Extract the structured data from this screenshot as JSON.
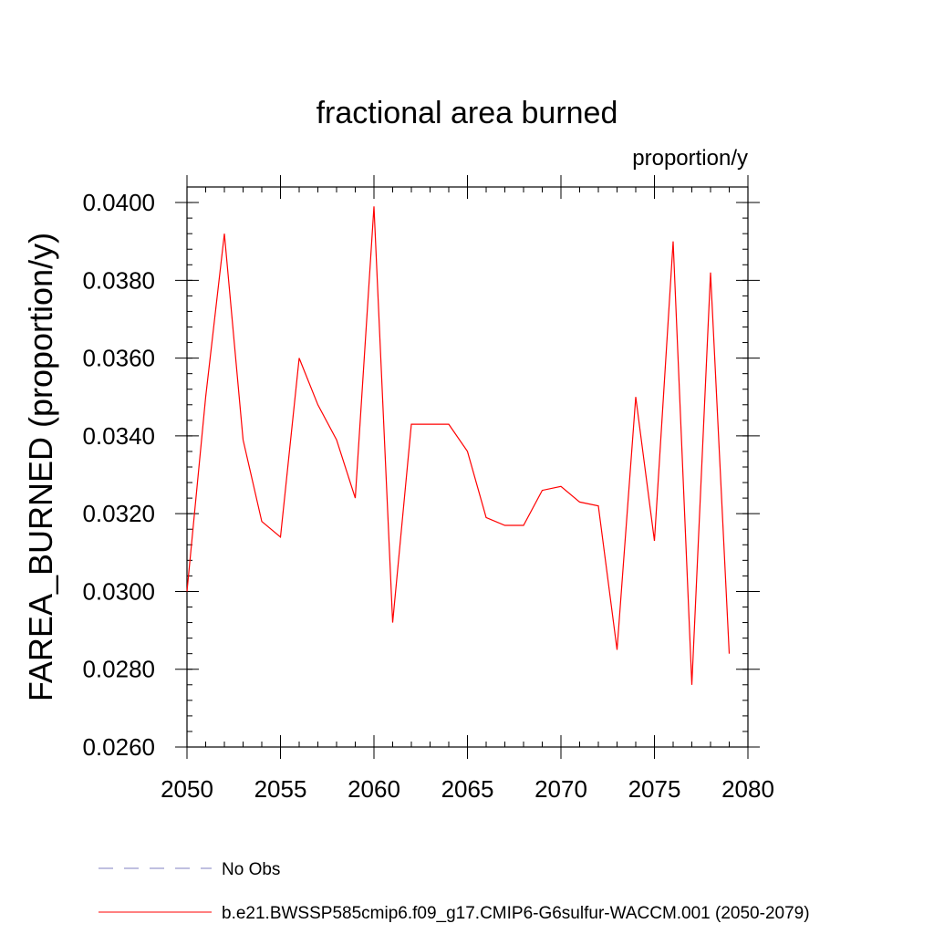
{
  "chart_data": {
    "type": "line",
    "title": "fractional area burned",
    "units": "proportion/y",
    "xlabel": "",
    "ylabel": "FAREA_BURNED  (proportion/y)",
    "xlim": [
      2050,
      2080
    ],
    "ylim": [
      0.026,
      0.0404
    ],
    "x_ticks": [
      2050,
      2055,
      2060,
      2065,
      2070,
      2075,
      2080
    ],
    "x_tick_labels": [
      "2050",
      "2055",
      "2060",
      "2065",
      "2070",
      "2075",
      "2080"
    ],
    "x_minor_step": 1,
    "y_ticks": [
      0.026,
      0.028,
      0.03,
      0.032,
      0.034,
      0.036,
      0.038,
      0.04
    ],
    "y_tick_labels": [
      "0.0260",
      "0.0280",
      "0.0300",
      "0.0320",
      "0.0340",
      "0.0360",
      "0.0380",
      "0.0400"
    ],
    "y_minor_step": 0.0004,
    "grid": false,
    "legend_position": "bottom",
    "series": [
      {
        "name": "b.e21.BWSSP585cmip6.f09_g17.CMIP6-G6sulfur-WACCM.001 (2050-2079)",
        "color": "#ff0000",
        "dash": "solid",
        "x": [
          2050,
          2051,
          2052,
          2053,
          2054,
          2055,
          2056,
          2057,
          2058,
          2059,
          2060,
          2061,
          2062,
          2063,
          2064,
          2065,
          2066,
          2067,
          2068,
          2069,
          2070,
          2071,
          2072,
          2073,
          2074,
          2075,
          2076,
          2077,
          2078,
          2079
        ],
        "values": [
          0.03,
          0.035,
          0.0392,
          0.0339,
          0.0318,
          0.0314,
          0.036,
          0.0348,
          0.0339,
          0.0324,
          0.0399,
          0.0292,
          0.0343,
          0.0343,
          0.0343,
          0.0336,
          0.0319,
          0.0317,
          0.0317,
          0.0326,
          0.0327,
          0.0323,
          0.0322,
          0.0285,
          0.035,
          0.0313,
          0.039,
          0.0276,
          0.0382,
          0.0284
        ]
      }
    ],
    "legend": [
      {
        "label": "No Obs",
        "color": "#8080c0",
        "dash": "dashed"
      },
      {
        "label": "b.e21.BWSSP585cmip6.f09_g17.CMIP6-G6sulfur-WACCM.001 (2050-2079)",
        "color": "#ff0000",
        "dash": "solid"
      }
    ]
  }
}
